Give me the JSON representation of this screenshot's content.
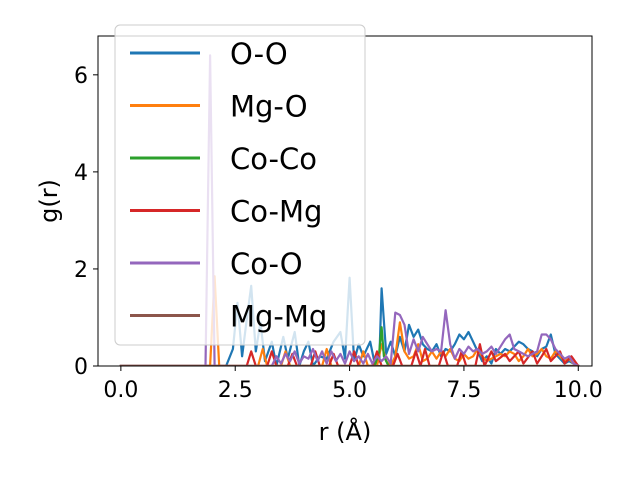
{
  "chart_data": {
    "type": "line",
    "title": "",
    "xlabel": "r (Å)",
    "ylabel": "g(r)",
    "xlim": [
      -0.5,
      10.3
    ],
    "ylim": [
      0,
      6.8
    ],
    "xticks": [
      0.0,
      2.5,
      5.0,
      7.5,
      10.0
    ],
    "xtick_labels": [
      "0.0",
      "2.5",
      "5.0",
      "7.5",
      "10.0"
    ],
    "yticks": [
      0,
      2,
      4,
      6
    ],
    "ytick_labels": [
      "0",
      "2",
      "4",
      "6"
    ],
    "legend_position": "top-left",
    "series": [
      {
        "name": "O-O",
        "color": "#1f77b4",
        "points": [
          [
            0,
            0
          ],
          [
            2.3,
            0
          ],
          [
            2.45,
            0.35
          ],
          [
            2.55,
            1.3
          ],
          [
            2.65,
            0.2
          ],
          [
            2.75,
            0.95
          ],
          [
            2.85,
            1.65
          ],
          [
            2.95,
            0.3
          ],
          [
            3.05,
            0.9
          ],
          [
            3.15,
            0.1
          ],
          [
            3.3,
            0.5
          ],
          [
            3.4,
            0.0
          ],
          [
            3.55,
            0.6
          ],
          [
            3.65,
            0.15
          ],
          [
            3.8,
            0.7
          ],
          [
            3.9,
            0.0
          ],
          [
            4.0,
            0.3
          ],
          [
            4.1,
            0.5
          ],
          [
            4.2,
            0.0
          ],
          [
            4.35,
            0.2
          ],
          [
            4.5,
            0.15
          ],
          [
            4.65,
            0.5
          ],
          [
            4.8,
            0.7
          ],
          [
            4.9,
            0.15
          ],
          [
            5.0,
            1.82
          ],
          [
            5.1,
            0.1
          ],
          [
            5.2,
            0.45
          ],
          [
            5.3,
            0.2
          ],
          [
            5.45,
            0.5
          ],
          [
            5.55,
            0.05
          ],
          [
            5.65,
            0.1
          ],
          [
            5.7,
            1.6
          ],
          [
            5.8,
            0.25
          ],
          [
            5.9,
            0.5
          ],
          [
            6.0,
            0.2
          ],
          [
            6.1,
            0.6
          ],
          [
            6.2,
            0.3
          ],
          [
            6.3,
            0.85
          ],
          [
            6.4,
            0.6
          ],
          [
            6.5,
            0.75
          ],
          [
            6.6,
            0.45
          ],
          [
            6.7,
            0.35
          ],
          [
            6.8,
            0.3
          ],
          [
            6.9,
            0.45
          ],
          [
            7.0,
            0.2
          ],
          [
            7.1,
            0.35
          ],
          [
            7.2,
            0.3
          ],
          [
            7.3,
            0.45
          ],
          [
            7.4,
            0.65
          ],
          [
            7.5,
            0.55
          ],
          [
            7.6,
            0.7
          ],
          [
            7.7,
            0.5
          ],
          [
            7.8,
            0.3
          ],
          [
            7.9,
            0.1
          ],
          [
            8.0,
            0.2
          ],
          [
            8.1,
            0.05
          ],
          [
            8.2,
            0.35
          ],
          [
            8.3,
            0.25
          ],
          [
            8.4,
            0.35
          ],
          [
            8.5,
            0.3
          ],
          [
            8.6,
            0.4
          ],
          [
            8.7,
            0.5
          ],
          [
            8.8,
            0.45
          ],
          [
            8.9,
            0.35
          ],
          [
            9.0,
            0.3
          ],
          [
            9.1,
            0.2
          ],
          [
            9.2,
            0.35
          ],
          [
            9.3,
            0.4
          ],
          [
            9.4,
            0.65
          ],
          [
            9.5,
            0.25
          ],
          [
            9.6,
            0.15
          ],
          [
            9.7,
            0.05
          ],
          [
            9.8,
            0.1
          ],
          [
            9.9,
            0.05
          ],
          [
            10.0,
            0.0
          ]
        ]
      },
      {
        "name": "Mg-O",
        "color": "#ff7f0e",
        "points": [
          [
            0,
            0
          ],
          [
            1.95,
            0
          ],
          [
            2.05,
            1.85
          ],
          [
            2.15,
            0
          ],
          [
            3.0,
            0
          ],
          [
            3.1,
            0.35
          ],
          [
            3.2,
            0
          ],
          [
            3.5,
            0
          ],
          [
            3.6,
            0.3
          ],
          [
            3.7,
            0
          ],
          [
            4.4,
            0
          ],
          [
            4.5,
            0.35
          ],
          [
            4.6,
            0
          ],
          [
            5.2,
            0
          ],
          [
            5.3,
            0.3
          ],
          [
            5.4,
            0
          ],
          [
            5.6,
            0
          ],
          [
            5.7,
            0.45
          ],
          [
            5.8,
            0.1
          ],
          [
            5.9,
            0.0
          ],
          [
            6.0,
            0.2
          ],
          [
            6.1,
            0.9
          ],
          [
            6.2,
            0.3
          ],
          [
            6.3,
            0.15
          ],
          [
            6.4,
            0.2
          ],
          [
            6.5,
            0.45
          ],
          [
            6.6,
            0.1
          ],
          [
            6.7,
            0.15
          ],
          [
            6.8,
            0.3
          ],
          [
            6.9,
            0.15
          ],
          [
            7.0,
            0.3
          ],
          [
            7.1,
            0.2
          ],
          [
            7.2,
            0.35
          ],
          [
            7.3,
            0.15
          ],
          [
            7.4,
            0.1
          ],
          [
            7.5,
            0.25
          ],
          [
            7.6,
            0.15
          ],
          [
            7.7,
            0.2
          ],
          [
            7.8,
            0.35
          ],
          [
            7.9,
            0.2
          ],
          [
            8.0,
            0.1
          ],
          [
            8.1,
            0.15
          ],
          [
            8.2,
            0.2
          ],
          [
            8.3,
            0.25
          ],
          [
            8.4,
            0.2
          ],
          [
            8.5,
            0.3
          ],
          [
            8.6,
            0.25
          ],
          [
            8.7,
            0.1
          ],
          [
            8.8,
            0.2
          ],
          [
            8.9,
            0.35
          ],
          [
            9.0,
            0.2
          ],
          [
            9.1,
            0.25
          ],
          [
            9.2,
            0.35
          ],
          [
            9.3,
            0.2
          ],
          [
            9.4,
            0.15
          ],
          [
            9.5,
            0.3
          ],
          [
            9.6,
            0.2
          ],
          [
            9.7,
            0.1
          ],
          [
            9.8,
            0.15
          ],
          [
            9.9,
            0.05
          ],
          [
            10.0,
            0.0
          ]
        ]
      },
      {
        "name": "Co-Co",
        "color": "#2ca02c",
        "points": [
          [
            0,
            0
          ],
          [
            5.55,
            0
          ],
          [
            5.65,
            0.3
          ],
          [
            5.7,
            0.8
          ],
          [
            5.75,
            0.2
          ],
          [
            5.85,
            0
          ],
          [
            10.0,
            0
          ]
        ]
      },
      {
        "name": "Co-Mg",
        "color": "#d62728",
        "points": [
          [
            0,
            0
          ],
          [
            2.75,
            0
          ],
          [
            2.85,
            0.3
          ],
          [
            2.95,
            0
          ],
          [
            3.2,
            0
          ],
          [
            3.3,
            0.3
          ],
          [
            3.4,
            0
          ],
          [
            3.65,
            0
          ],
          [
            3.75,
            0.25
          ],
          [
            3.85,
            0
          ],
          [
            4.15,
            0
          ],
          [
            4.25,
            0.3
          ],
          [
            4.35,
            0
          ],
          [
            4.55,
            0
          ],
          [
            4.65,
            0.25
          ],
          [
            4.75,
            0
          ],
          [
            5.0,
            0
          ],
          [
            5.1,
            0.3
          ],
          [
            5.2,
            0
          ],
          [
            5.5,
            0
          ],
          [
            5.6,
            0.3
          ],
          [
            5.7,
            0
          ],
          [
            5.95,
            0
          ],
          [
            6.05,
            0.25
          ],
          [
            6.15,
            0
          ],
          [
            6.35,
            0
          ],
          [
            6.45,
            0.3
          ],
          [
            6.55,
            0
          ],
          [
            6.65,
            0.35
          ],
          [
            6.75,
            0
          ],
          [
            6.95,
            0
          ],
          [
            7.05,
            0.3
          ],
          [
            7.15,
            0
          ],
          [
            7.35,
            0
          ],
          [
            7.45,
            0.3
          ],
          [
            7.55,
            0
          ],
          [
            7.75,
            0
          ],
          [
            7.85,
            0.45
          ],
          [
            7.95,
            0
          ],
          [
            8.1,
            0.3
          ],
          [
            8.2,
            0.1
          ],
          [
            8.4,
            0.25
          ],
          [
            8.5,
            0.1
          ],
          [
            8.7,
            0.3
          ],
          [
            8.8,
            0.05
          ],
          [
            9.0,
            0.3
          ],
          [
            9.1,
            0.05
          ],
          [
            9.3,
            0.35
          ],
          [
            9.4,
            0.1
          ],
          [
            9.6,
            0.3
          ],
          [
            9.7,
            0.05
          ],
          [
            9.85,
            0.2
          ],
          [
            10.0,
            0.0
          ]
        ]
      },
      {
        "name": "Co-O",
        "color": "#9467bd",
        "points": [
          [
            0,
            0
          ],
          [
            1.85,
            0
          ],
          [
            1.95,
            6.4
          ],
          [
            2.05,
            0
          ],
          [
            3.3,
            0
          ],
          [
            3.4,
            0.2
          ],
          [
            3.5,
            0.05
          ],
          [
            3.6,
            0.25
          ],
          [
            3.7,
            0.1
          ],
          [
            3.8,
            0.3
          ],
          [
            3.9,
            0.05
          ],
          [
            4.0,
            0.2
          ],
          [
            4.1,
            0.15
          ],
          [
            4.2,
            0.35
          ],
          [
            4.3,
            0.1
          ],
          [
            4.4,
            0.3
          ],
          [
            4.5,
            0.05
          ],
          [
            4.6,
            0.3
          ],
          [
            4.7,
            0.1
          ],
          [
            4.8,
            0.25
          ],
          [
            4.9,
            0.05
          ],
          [
            5.0,
            0.3
          ],
          [
            5.1,
            0.1
          ],
          [
            5.2,
            0.2
          ],
          [
            5.3,
            0.05
          ],
          [
            5.4,
            0.25
          ],
          [
            5.5,
            0.05
          ],
          [
            5.6,
            0.2
          ],
          [
            5.7,
            0.1
          ],
          [
            5.8,
            0.2
          ],
          [
            5.9,
            0.05
          ],
          [
            6.0,
            1.1
          ],
          [
            6.1,
            1.05
          ],
          [
            6.2,
            0.85
          ],
          [
            6.3,
            0.25
          ],
          [
            6.4,
            0.55
          ],
          [
            6.5,
            0.3
          ],
          [
            6.6,
            0.6
          ],
          [
            6.7,
            0.45
          ],
          [
            6.8,
            0.3
          ],
          [
            6.9,
            0.35
          ],
          [
            7.0,
            0.3
          ],
          [
            7.1,
            1.15
          ],
          [
            7.2,
            0.45
          ],
          [
            7.3,
            0.15
          ],
          [
            7.4,
            0.35
          ],
          [
            7.5,
            0.25
          ],
          [
            7.6,
            0.4
          ],
          [
            7.7,
            0.3
          ],
          [
            7.8,
            0.35
          ],
          [
            7.9,
            0.25
          ],
          [
            8.0,
            0.3
          ],
          [
            8.1,
            0.4
          ],
          [
            8.2,
            0.25
          ],
          [
            8.3,
            0.4
          ],
          [
            8.4,
            0.55
          ],
          [
            8.5,
            0.65
          ],
          [
            8.6,
            0.35
          ],
          [
            8.7,
            0.3
          ],
          [
            8.8,
            0.25
          ],
          [
            8.9,
            0.2
          ],
          [
            9.0,
            0.25
          ],
          [
            9.1,
            0.3
          ],
          [
            9.2,
            0.65
          ],
          [
            9.3,
            0.65
          ],
          [
            9.4,
            0.55
          ],
          [
            9.5,
            0.35
          ],
          [
            9.6,
            0.25
          ],
          [
            9.7,
            0.15
          ],
          [
            9.8,
            0.2
          ],
          [
            9.9,
            0.05
          ],
          [
            10.0,
            0.0
          ]
        ]
      },
      {
        "name": "Mg-Mg",
        "color": "#8c564b",
        "points": [
          [
            0,
            0
          ],
          [
            10.0,
            0
          ]
        ]
      }
    ]
  }
}
